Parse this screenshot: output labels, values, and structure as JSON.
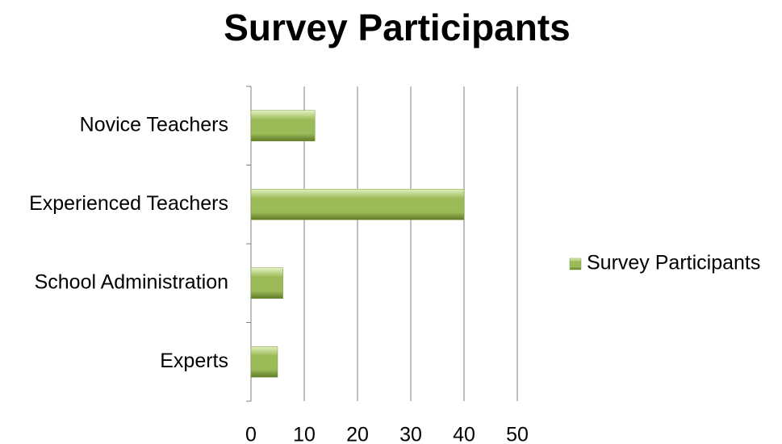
{
  "chart_data": {
    "type": "bar",
    "orientation": "horizontal",
    "title": "Survey Participants",
    "categories": [
      "Novice Teachers",
      "Experienced Teachers",
      "School Administration",
      "Experts"
    ],
    "series": [
      {
        "name": "Survey Participants",
        "color": "#9bbb59",
        "values": [
          12,
          40,
          6,
          5
        ]
      }
    ],
    "xlim": [
      0,
      50
    ],
    "xticks": [
      0,
      10,
      20,
      30,
      40,
      50
    ],
    "grid": true,
    "legend": "right"
  }
}
